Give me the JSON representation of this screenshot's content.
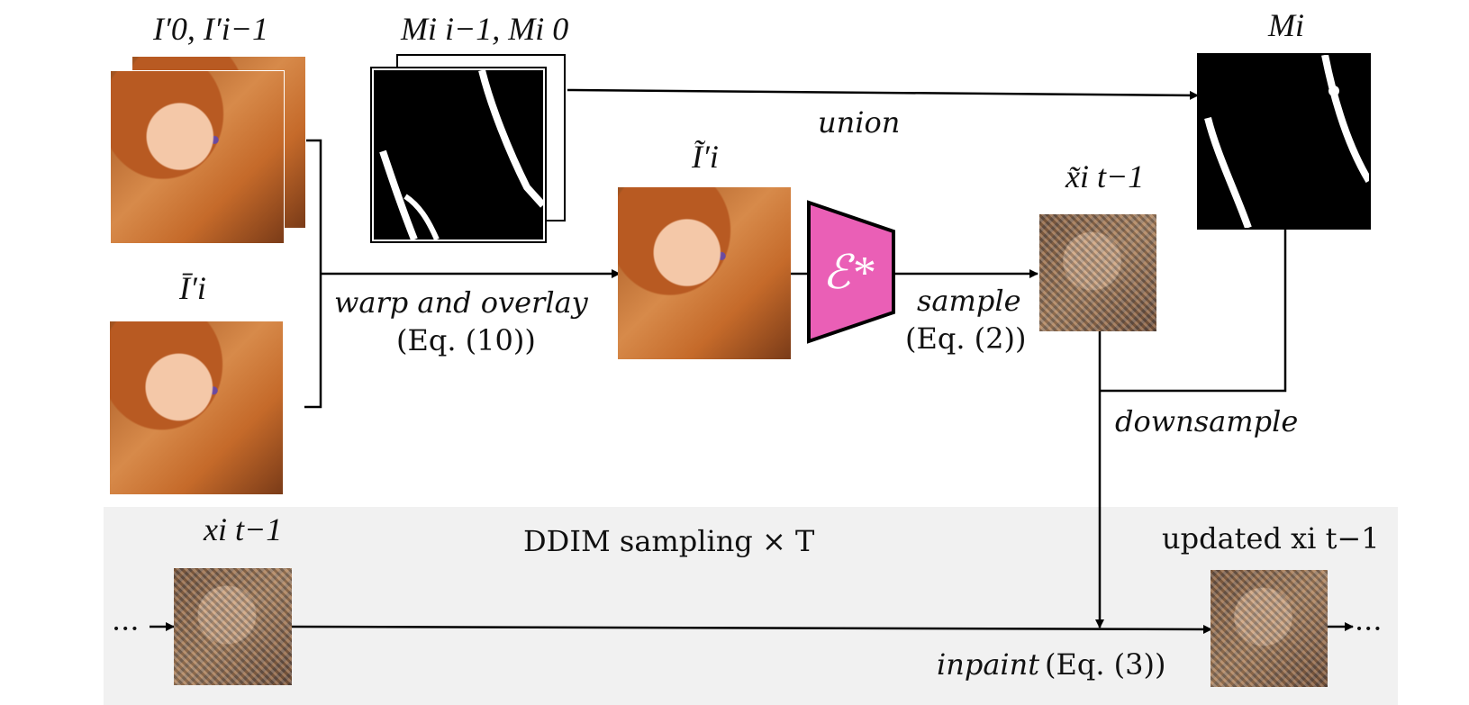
{
  "labels": {
    "i0_prev": "I′0, I′i−1",
    "mask_prev": "Mi i−1, Mi 0",
    "m_i": "Mi",
    "i_bar": "Ī′i",
    "i_tilde": "Ĩ′i",
    "encoder": "ℰ*",
    "x_tilde": "x̃i t−1",
    "x_prev": "xi t−1",
    "updated": "updated xi t−1",
    "union": "union",
    "warp_overlay": "warp and overlay",
    "eq10": "(Eq. (10))",
    "sample": "sample",
    "eq2": "(Eq. (2))",
    "downsample": "downsample",
    "ddim": "DDIM sampling × T",
    "inpaint": "inpaint",
    "eq3": "(Eq. (3))",
    "ellipsis_left": "···",
    "ellipsis_right": "···"
  },
  "colors": {
    "encoder_fill": "#ea5fb6",
    "band": "#f1f1f1",
    "line": "#000000"
  }
}
